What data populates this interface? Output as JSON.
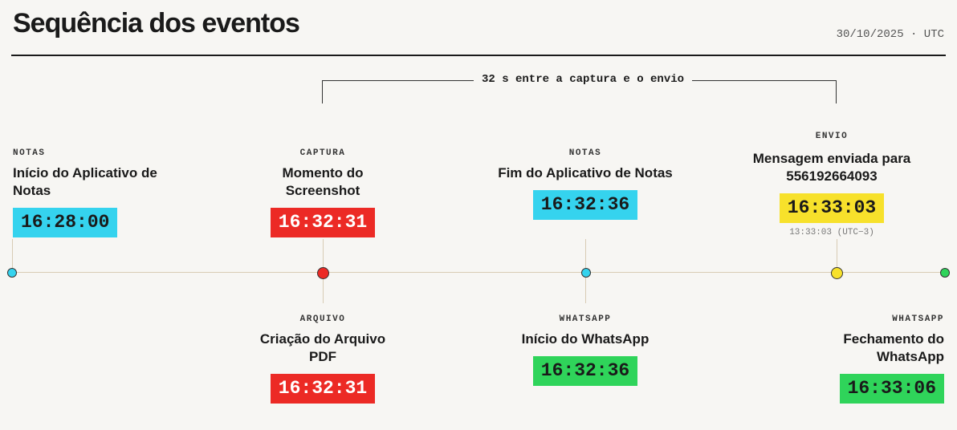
{
  "header": {
    "title": "Sequência dos eventos",
    "date": "30/10/2025 · UTC"
  },
  "bracket": {
    "label": "32 s entre a captura e o envio"
  },
  "colors": {
    "notas": "#35d3ee",
    "captura": "#ec2a25",
    "envio": "#f7e12b",
    "whatsapp": "#2fd45a",
    "axis": "#d8cbb4"
  },
  "events_top": [
    {
      "category": "NOTAS",
      "name": "Início do Aplicativo de Notas",
      "time": "16:28:00",
      "color": "cyan"
    },
    {
      "category": "CAPTURA",
      "name": "Momento do Screenshot",
      "time": "16:32:31",
      "color": "red"
    },
    {
      "category": "NOTAS",
      "name": "Fim do Aplicativo de Notas",
      "time": "16:32:36",
      "color": "cyan"
    },
    {
      "category": "ENVIO",
      "name": "Mensagem enviada para 556192664093",
      "time": "16:33:03",
      "local_time": "13:33:03 (UTC−3)",
      "color": "yellow"
    }
  ],
  "events_bottom": [
    {
      "category": "ARQUIVO",
      "name": "Criação do Arquivo PDF",
      "time": "16:32:31",
      "color": "red"
    },
    {
      "category": "WHATSAPP",
      "name": "Início do WhatsApp",
      "time": "16:32:36",
      "color": "green"
    },
    {
      "category": "WHATSAPP",
      "name": "Fechamento do WhatsApp",
      "time": "16:33:06",
      "color": "green"
    }
  ]
}
